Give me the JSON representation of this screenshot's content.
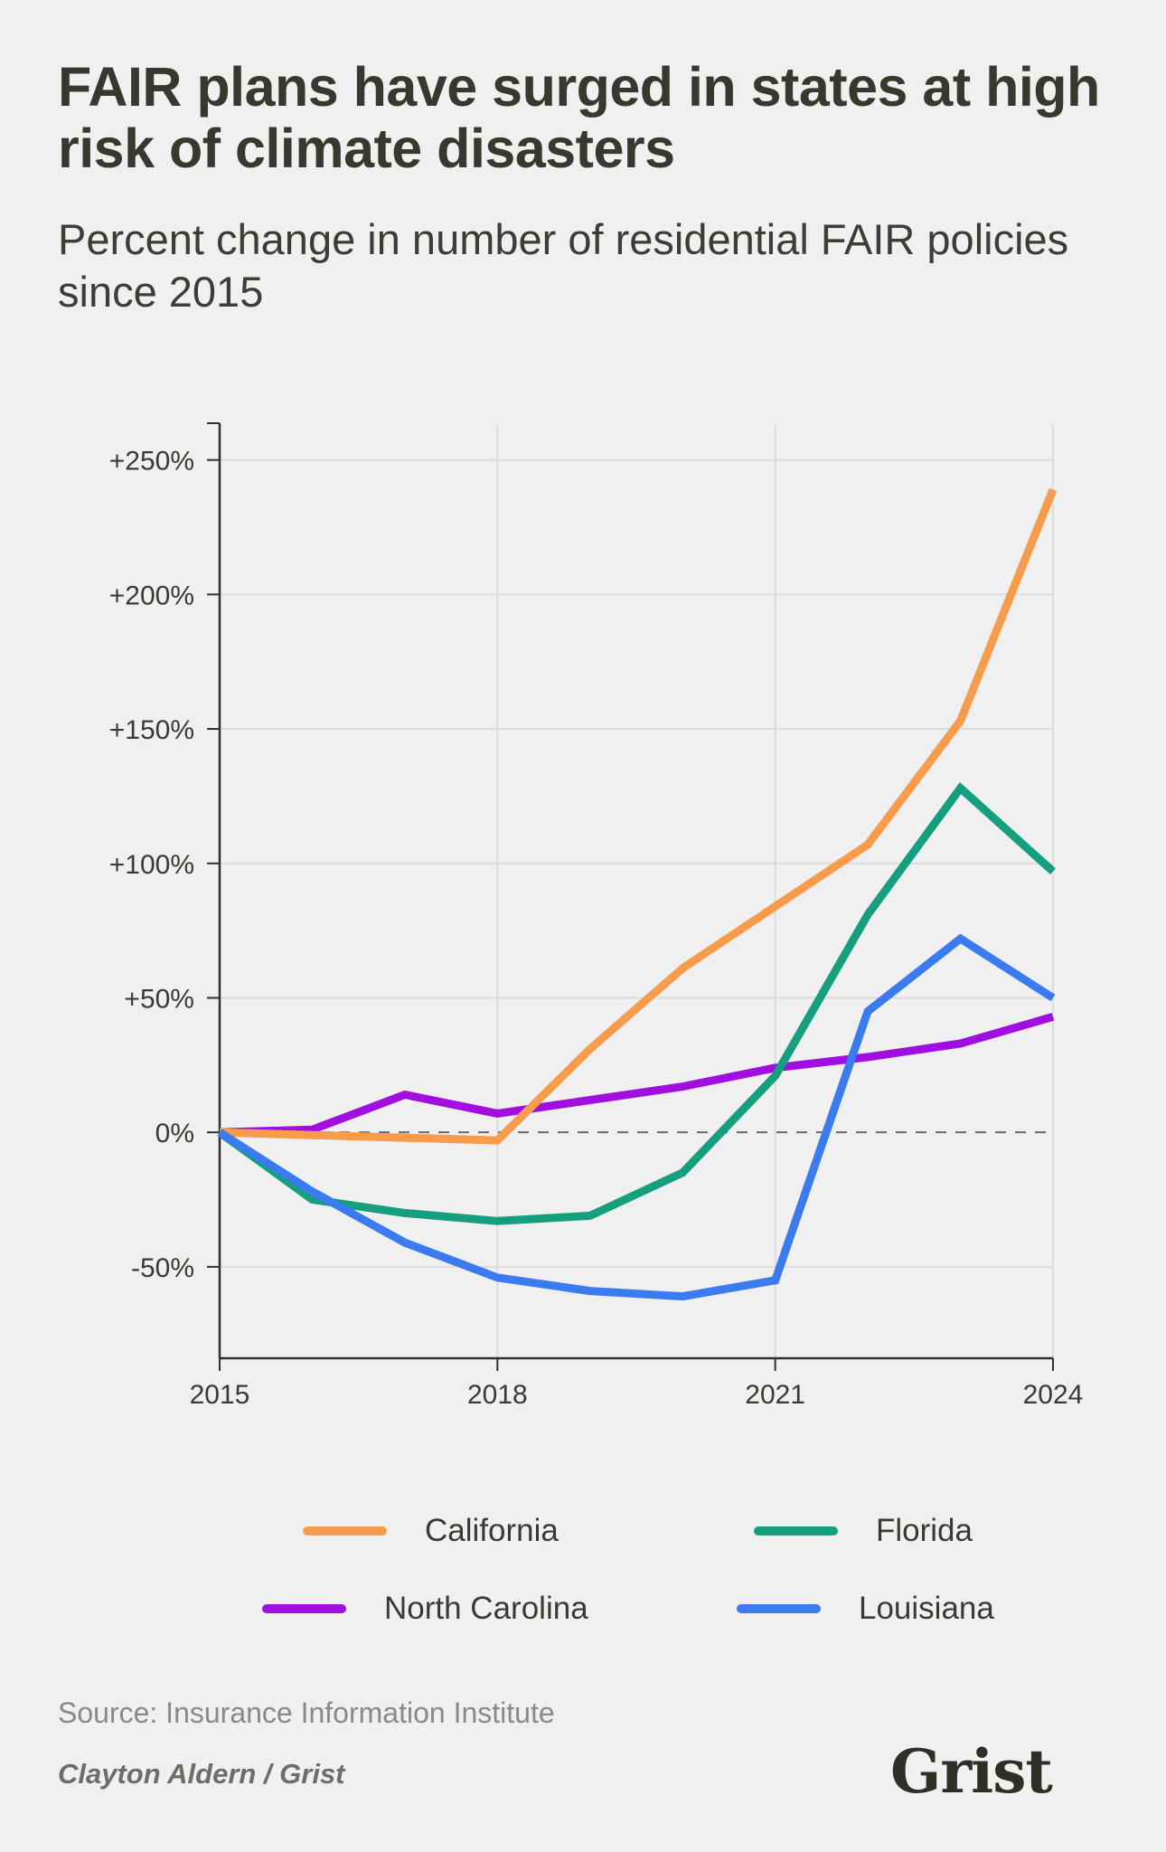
{
  "header": {
    "title": "FAIR plans have surged in states at high risk of climate disasters",
    "subtitle": "Percent change in number of residential FAIR policies since 2015"
  },
  "chart_data": {
    "type": "line",
    "x": [
      2015,
      2016,
      2017,
      2018,
      2019,
      2020,
      2021,
      2022,
      2023,
      2024
    ],
    "x_ticks": [
      2015,
      2018,
      2021,
      2024
    ],
    "x_tick_labels": [
      "2015",
      "2018",
      "2021",
      "2024"
    ],
    "y_ticks": [
      250,
      200,
      150,
      100,
      50,
      0,
      -50
    ],
    "y_tick_labels": [
      "+250%",
      "+200%",
      "+150%",
      "+100%",
      "+50%",
      "0%",
      "-50%"
    ],
    "xlim": [
      2015,
      2024
    ],
    "ylim": [
      -84,
      263
    ],
    "grid": true,
    "zero_line": "dashed",
    "legend_position": "bottom",
    "series": [
      {
        "name": "California",
        "color": "#f79c4c",
        "values": [
          0,
          -1,
          -2,
          -3,
          31,
          61,
          84,
          107,
          153,
          239
        ]
      },
      {
        "name": "Florida",
        "color": "#159f7e",
        "values": [
          0,
          -25,
          -30,
          -33,
          -31,
          -15,
          21,
          81,
          128,
          97
        ]
      },
      {
        "name": "North Carolina",
        "color": "#a10ee0",
        "values": [
          0,
          1,
          14,
          7,
          12,
          17,
          24,
          28,
          33,
          43
        ]
      },
      {
        "name": "Louisiana",
        "color": "#3b7bf0",
        "values": [
          0,
          -22,
          -41,
          -54,
          -59,
          -61,
          -55,
          45,
          72,
          50
        ]
      }
    ]
  },
  "legend": [
    {
      "label": "California",
      "color": "#f79c4c"
    },
    {
      "label": "Florida",
      "color": "#159f7e"
    },
    {
      "label": "North Carolina",
      "color": "#a10ee0"
    },
    {
      "label": "Louisiana",
      "color": "#3b7bf0"
    }
  ],
  "footer": {
    "source": "Source: Insurance Information Institute",
    "credit": "Clayton Aldern / Grist",
    "logo": "Grist"
  }
}
